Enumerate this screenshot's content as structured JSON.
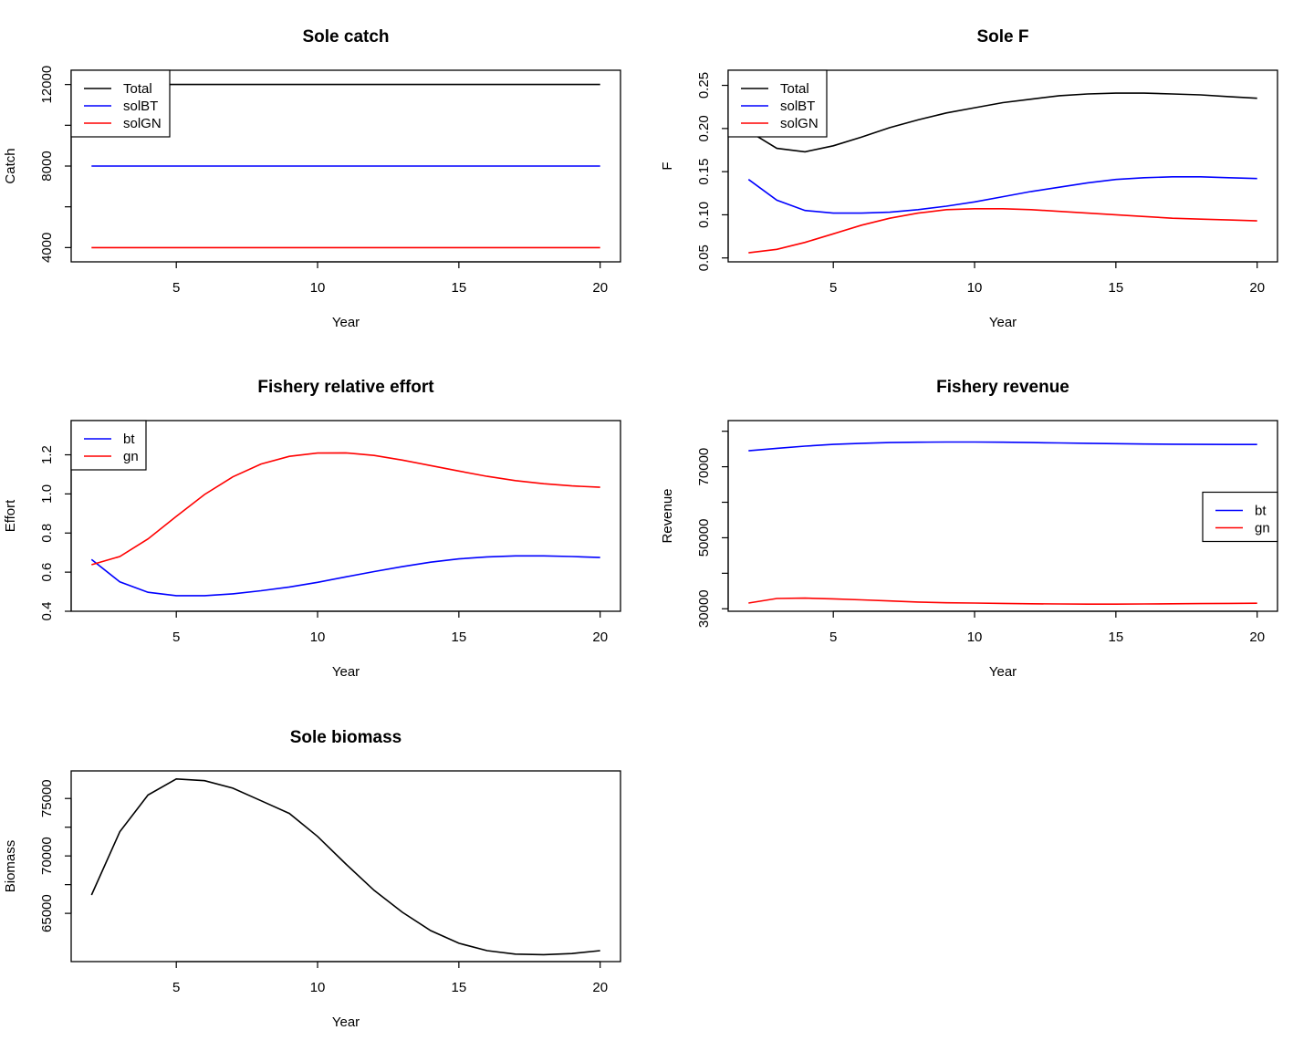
{
  "chart_data": [
    {
      "type": "line",
      "title": "Sole catch",
      "xlabel": "Year",
      "ylabel": "Catch",
      "x": [
        2,
        3,
        4,
        5,
        6,
        7,
        8,
        9,
        10,
        11,
        12,
        13,
        14,
        15,
        16,
        17,
        18,
        19,
        20
      ],
      "xlim": [
        2,
        20
      ],
      "ylim": [
        3300,
        12700
      ],
      "xticks": [
        "5",
        "10",
        "15",
        "20"
      ],
      "yticks": [
        "4000",
        "8000",
        "12000"
      ],
      "legend": {
        "position": "top-left",
        "items": [
          "Total",
          "solBT",
          "solGN"
        ]
      },
      "series": [
        {
          "name": "Total",
          "color": "#000000",
          "values": [
            12000,
            12000,
            12000,
            12000,
            12000,
            12000,
            12000,
            12000,
            12000,
            12000,
            12000,
            12000,
            12000,
            12000,
            12000,
            12000,
            12000,
            12000,
            12000
          ]
        },
        {
          "name": "solBT",
          "color": "#0000ff",
          "values": [
            8000,
            8000,
            8000,
            8000,
            8000,
            8000,
            8000,
            8000,
            8000,
            8000,
            8000,
            8000,
            8000,
            8000,
            8000,
            8000,
            8000,
            8000,
            8000
          ]
        },
        {
          "name": "solGN",
          "color": "#ff0000",
          "values": [
            4000,
            4000,
            4000,
            4000,
            4000,
            4000,
            4000,
            4000,
            4000,
            4000,
            4000,
            4000,
            4000,
            4000,
            4000,
            4000,
            4000,
            4000,
            4000
          ]
        }
      ]
    },
    {
      "type": "line",
      "title": "Sole F",
      "xlabel": "Year",
      "ylabel": "F",
      "x": [
        2,
        3,
        4,
        5,
        6,
        7,
        8,
        9,
        10,
        11,
        12,
        13,
        14,
        15,
        16,
        17,
        18,
        19,
        20
      ],
      "xlim": [
        2,
        20
      ],
      "ylim": [
        0.0455,
        0.2675
      ],
      "xticks": [
        "5",
        "10",
        "15",
        "20"
      ],
      "yticks": [
        "0.05",
        "0.10",
        "0.15",
        "0.20",
        "0.25"
      ],
      "legend": {
        "position": "top-left",
        "items": [
          "Total",
          "solBT",
          "solGN"
        ]
      },
      "series": [
        {
          "name": "Total",
          "color": "#000000",
          "values": [
            0.197,
            0.177,
            0.173,
            0.18,
            0.19,
            0.201,
            0.21,
            0.218,
            0.224,
            0.23,
            0.234,
            0.238,
            0.24,
            0.241,
            0.241,
            0.24,
            0.239,
            0.237,
            0.235
          ]
        },
        {
          "name": "solBT",
          "color": "#0000ff",
          "values": [
            0.141,
            0.117,
            0.105,
            0.102,
            0.102,
            0.103,
            0.106,
            0.11,
            0.115,
            0.121,
            0.127,
            0.132,
            0.137,
            0.141,
            0.143,
            0.144,
            0.144,
            0.143,
            0.142
          ]
        },
        {
          "name": "solGN",
          "color": "#ff0000",
          "values": [
            0.056,
            0.06,
            0.068,
            0.078,
            0.088,
            0.096,
            0.102,
            0.106,
            0.107,
            0.107,
            0.106,
            0.104,
            0.102,
            0.1,
            0.098,
            0.096,
            0.095,
            0.094,
            0.093
          ]
        }
      ]
    },
    {
      "type": "line",
      "title": "Fishery relative effort",
      "xlabel": "Year",
      "ylabel": "Effort",
      "x": [
        2,
        3,
        4,
        5,
        6,
        7,
        8,
        9,
        10,
        11,
        12,
        13,
        14,
        15,
        16,
        17,
        18,
        19,
        20
      ],
      "xlim": [
        2,
        20
      ],
      "ylim": [
        0.4,
        1.375
      ],
      "xticks": [
        "5",
        "10",
        "15",
        "20"
      ],
      "yticks": [
        "0.4",
        "0.6",
        "0.8",
        "1.0",
        "1.2"
      ],
      "legend": {
        "position": "top-left",
        "items": [
          "bt",
          "gn"
        ]
      },
      "series": [
        {
          "name": "bt",
          "color": "#0000ff",
          "values": [
            0.665,
            0.55,
            0.497,
            0.48,
            0.48,
            0.489,
            0.505,
            0.524,
            0.548,
            0.576,
            0.603,
            0.628,
            0.651,
            0.668,
            0.678,
            0.683,
            0.683,
            0.68,
            0.675
          ]
        },
        {
          "name": "gn",
          "color": "#ff0000",
          "values": [
            0.638,
            0.68,
            0.77,
            0.885,
            0.997,
            1.087,
            1.153,
            1.192,
            1.209,
            1.21,
            1.197,
            1.173,
            1.145,
            1.117,
            1.09,
            1.068,
            1.052,
            1.041,
            1.034
          ]
        }
      ]
    },
    {
      "type": "line",
      "title": "Fishery revenue",
      "xlabel": "Year",
      "ylabel": "Revenue",
      "x": [
        2,
        3,
        4,
        5,
        6,
        7,
        8,
        9,
        10,
        11,
        12,
        13,
        14,
        15,
        16,
        17,
        18,
        19,
        20
      ],
      "xlim": [
        2,
        20
      ],
      "ylim": [
        29300,
        83000
      ],
      "xticks": [
        "5",
        "10",
        "15",
        "20"
      ],
      "yticks": [
        "30000",
        "50000",
        "70000"
      ],
      "legend": {
        "position": "center-right",
        "items": [
          "bt",
          "gn"
        ]
      },
      "series": [
        {
          "name": "bt",
          "color": "#0000ff",
          "values": [
            74500,
            75200,
            75800,
            76300,
            76600,
            76800,
            76900,
            76950,
            76950,
            76900,
            76800,
            76700,
            76600,
            76500,
            76400,
            76350,
            76300,
            76280,
            76270
          ]
        },
        {
          "name": "gn",
          "color": "#ff0000",
          "values": [
            31600,
            32900,
            33000,
            32800,
            32500,
            32200,
            31900,
            31700,
            31600,
            31500,
            31400,
            31350,
            31300,
            31300,
            31350,
            31400,
            31450,
            31500,
            31550
          ]
        }
      ]
    },
    {
      "type": "line",
      "title": "Sole biomass",
      "xlabel": "Year",
      "ylabel": "Biomass",
      "x": [
        2,
        3,
        4,
        5,
        6,
        7,
        8,
        9,
        10,
        11,
        12,
        13,
        14,
        15,
        16,
        17,
        18,
        19,
        20
      ],
      "xlim": [
        2,
        20
      ],
      "ylim": [
        60800,
        77400
      ],
      "xticks": [
        "5",
        "10",
        "15",
        "20"
      ],
      "yticks": [
        "65000",
        "70000",
        "75000"
      ],
      "legend": null,
      "series": [
        {
          "name": "",
          "color": "#000000",
          "values": [
            66600,
            72100,
            75300,
            76700,
            76550,
            75900,
            74800,
            73700,
            71700,
            69300,
            67000,
            65100,
            63500,
            62400,
            61750,
            61450,
            61400,
            61500,
            61750
          ]
        }
      ]
    }
  ]
}
